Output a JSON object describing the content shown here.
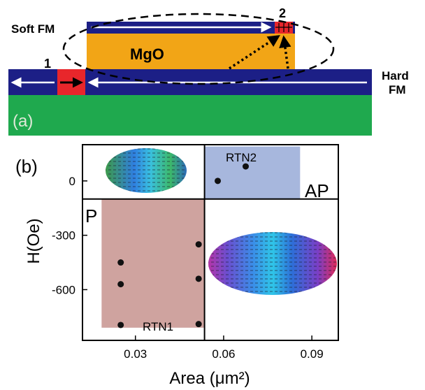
{
  "panel_a": {
    "label": "(a)",
    "soft_fm": "Soft FM",
    "barrier": "MgO",
    "hard_fm_line1": "Hard",
    "hard_fm_line2": "FM",
    "marker_1": "1",
    "marker_2": "2",
    "colors": {
      "ferromagnet": "#1c1f86",
      "barrier": "#f2a516",
      "substrate": "#1fa94e",
      "domain": "#e8262b"
    }
  },
  "panel_b": {
    "label": "(b)",
    "state_ap": "AP",
    "state_p": "P",
    "rtn1_label": "RTN1",
    "rtn2_label": "RTN2",
    "colors": {
      "ap_region": "#a7b7dd",
      "p_region": "#cfa39f"
    }
  },
  "chart_data": {
    "type": "scatter",
    "xlabel": "Area (μm²)",
    "ylabel": "H(Oe)",
    "xlim": [
      0.012,
      0.099
    ],
    "ylim": [
      -880,
      200
    ],
    "x_ticks": [
      0.03,
      0.06,
      0.09
    ],
    "x_tick_labels": [
      "0.03",
      "0.06",
      "0.09"
    ],
    "y_ticks": [
      0,
      -300,
      -600
    ],
    "y_tick_labels": [
      "0",
      "-300",
      "-600"
    ],
    "grid": false,
    "divider_x": 0.0535,
    "divider_y": -100,
    "regions": [
      {
        "name": "AP",
        "x": [
          0.0535,
          0.086
        ],
        "y": [
          -100,
          190
        ]
      },
      {
        "name": "P",
        "x": [
          0.0185,
          0.0535
        ],
        "y": [
          -810,
          -100
        ]
      }
    ],
    "series": [
      {
        "name": "RTN1",
        "x": [
          0.025,
          0.025,
          0.025,
          0.0515,
          0.0515,
          0.0515
        ],
        "y": [
          -450,
          -570,
          -795,
          -350,
          -540,
          -790
        ]
      },
      {
        "name": "RTN2",
        "x": [
          0.058,
          0.0675
        ],
        "y": [
          0,
          80
        ]
      }
    ]
  }
}
